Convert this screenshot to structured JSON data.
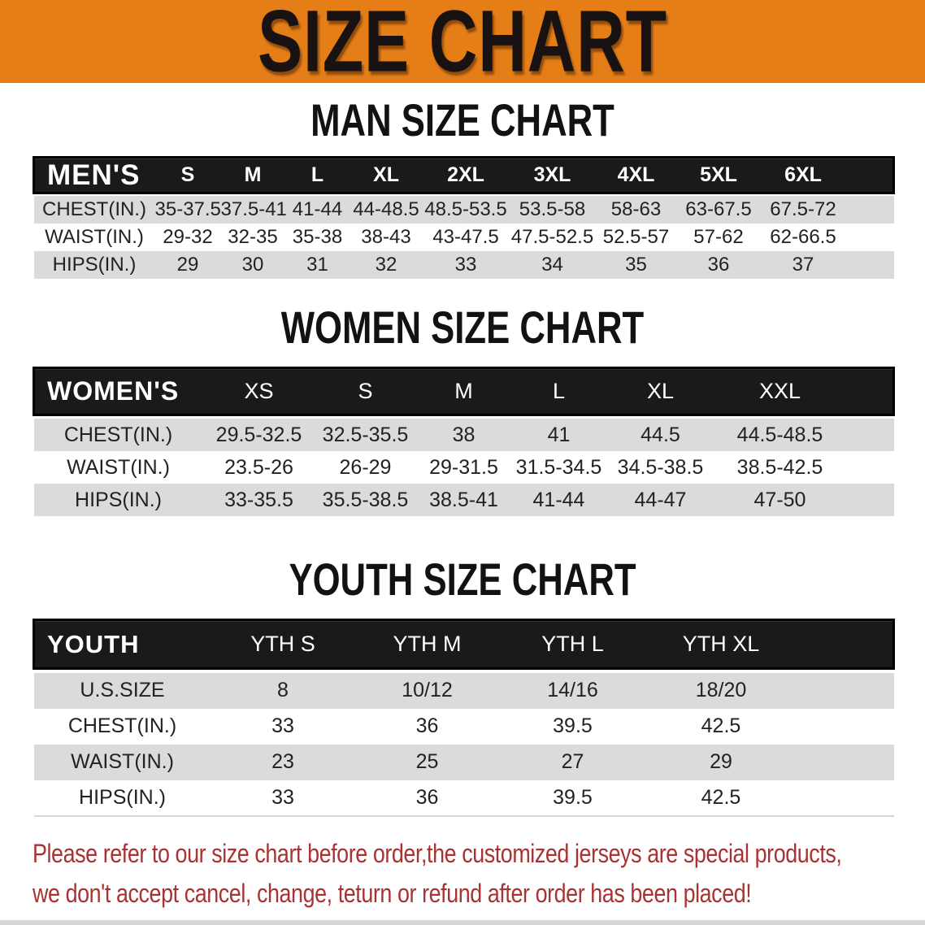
{
  "banner": {
    "title": "SIZE CHART"
  },
  "colors": {
    "banner_bg": "#E67E17",
    "header_bar": "#1A1A1A",
    "row_stripe_grey": "#DBDBDB",
    "footer_text_red": "#A93333"
  },
  "sections": [
    {
      "heading": "MAN SIZE CHART",
      "table": {
        "label": "MEN'S",
        "columns": [
          "S",
          "M",
          "L",
          "XL",
          "2XL",
          "3XL",
          "4XL",
          "5XL",
          "6XL"
        ],
        "rows": [
          {
            "label": "CHEST(IN.)",
            "values": [
              "35-37.5",
              "37.5-41",
              "41-44",
              "44-48.5",
              "48.5-53.5",
              "53.5-58",
              "58-63",
              "63-67.5",
              "67.5-72"
            ]
          },
          {
            "label": "WAIST(IN.)",
            "values": [
              "29-32",
              "32-35",
              "35-38",
              "38-43",
              "43-47.5",
              "47.5-52.5",
              "52.5-57",
              "57-62",
              "62-66.5"
            ]
          },
          {
            "label": "HIPS(IN.)",
            "values": [
              "29",
              "30",
              "31",
              "32",
              "33",
              "34",
              "35",
              "36",
              "37"
            ]
          }
        ]
      }
    },
    {
      "heading": "WOMEN SIZE CHART",
      "table": {
        "label": "WOMEN'S",
        "columns": [
          "XS",
          "S",
          "M",
          "L",
          "XL",
          "XXL"
        ],
        "rows": [
          {
            "label": "CHEST(IN.)",
            "values": [
              "29.5-32.5",
              "32.5-35.5",
              "38",
              "41",
              "44.5",
              "44.5-48.5"
            ]
          },
          {
            "label": "WAIST(IN.)",
            "values": [
              "23.5-26",
              "26-29",
              "29-31.5",
              "31.5-34.5",
              "34.5-38.5",
              "38.5-42.5"
            ]
          },
          {
            "label": "HIPS(IN.)",
            "values": [
              "33-35.5",
              "35.5-38.5",
              "38.5-41",
              "41-44",
              "44-47",
              "47-50"
            ]
          }
        ]
      }
    },
    {
      "heading": "YOUTH SIZE CHART",
      "table": {
        "label": "YOUTH",
        "columns": [
          "YTH S",
          "YTH M",
          "YTH L",
          "YTH XL"
        ],
        "rows": [
          {
            "label": "U.S.SIZE",
            "values": [
              "8",
              "10/12",
              "14/16",
              "18/20"
            ]
          },
          {
            "label": "CHEST(IN.)",
            "values": [
              "33",
              "36",
              "39.5",
              "42.5"
            ]
          },
          {
            "label": "WAIST(IN.)",
            "values": [
              "23",
              "25",
              "27",
              "29"
            ]
          },
          {
            "label": "HIPS(IN.)",
            "values": [
              "33",
              "36",
              "39.5",
              "42.5"
            ]
          }
        ]
      }
    }
  ],
  "footer": {
    "line1": "Please refer to our size chart before order,the customized jerseys are special products,",
    "line2": "we don't accept cancel, change, teturn or refund after order has been placed!"
  }
}
